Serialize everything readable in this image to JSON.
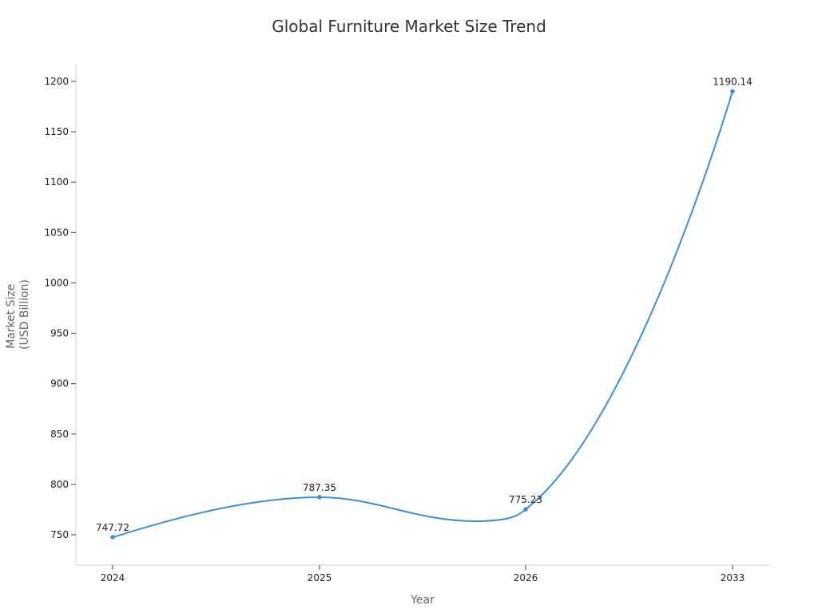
{
  "chart_data": {
    "type": "line",
    "title": "Global Furniture Market Size Trend",
    "xlabel": "Year",
    "ylabel": "Market Size\n(USD Billion)",
    "ylabel_lines": [
      "Market Size",
      "(USD Billion)"
    ],
    "categories": [
      "2024",
      "2025",
      "2026",
      "2033"
    ],
    "series": [
      {
        "name": "Market Size",
        "values": [
          747.72,
          787.35,
          775.23,
          1190.14
        ],
        "labels": [
          "747.72",
          "787.35",
          "775.23",
          "1190.14"
        ],
        "color": "#3a8fd6",
        "smoothed": true
      }
    ],
    "yticks": [
      "750",
      "800",
      "850",
      "900",
      "950",
      "1000",
      "1050",
      "1100",
      "1150",
      "1200"
    ],
    "ylim": [
      720,
      1217
    ],
    "grid": false,
    "legend": "none"
  }
}
